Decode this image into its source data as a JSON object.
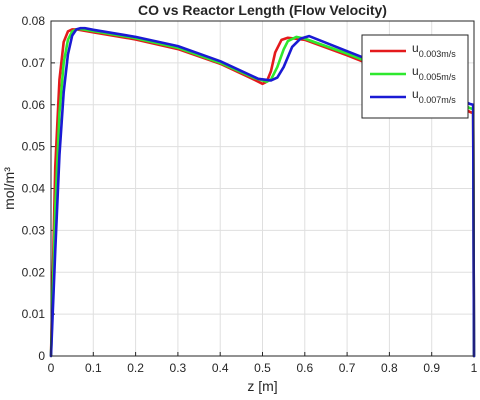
{
  "chart_data": {
    "type": "line",
    "title": "CO vs Reactor Length (Flow Velocity)",
    "xlabel": "z [m]",
    "ylabel": "mol/m³",
    "xlim": [
      0,
      1
    ],
    "ylim": [
      0,
      0.08
    ],
    "xticks": [
      0,
      0.1,
      0.2,
      0.3,
      0.4,
      0.5,
      0.6,
      0.7,
      0.8,
      0.9,
      1
    ],
    "xtick_labels": [
      "0",
      "0.1",
      "0.2",
      "0.3",
      "0.4",
      "0.5",
      "0.6",
      "0.7",
      "0.8",
      "0.9",
      "1"
    ],
    "yticks": [
      0,
      0.01,
      0.02,
      0.03,
      0.04,
      0.05,
      0.06,
      0.07,
      0.08
    ],
    "ytick_labels": [
      "0",
      "0.01",
      "0.02",
      "0.03",
      "0.04",
      "0.05",
      "0.06",
      "0.07",
      "0.08"
    ],
    "grid": true,
    "legend_position": "top-right",
    "series": [
      {
        "legend_main": "u",
        "legend_sub": "0.003m/s",
        "color": "#e41a1c",
        "x": [
          0,
          0.01,
          0.02,
          0.03,
          0.04,
          0.05,
          0.06,
          0.1,
          0.2,
          0.3,
          0.4,
          0.47,
          0.5,
          0.51,
          0.52,
          0.53,
          0.545,
          0.56,
          0.6,
          0.7,
          0.8,
          0.9,
          0.99,
          0.998,
          1
        ],
        "y": [
          0,
          0.045,
          0.066,
          0.075,
          0.0775,
          0.078,
          0.078,
          0.0773,
          0.0756,
          0.0733,
          0.0698,
          0.0665,
          0.065,
          0.0655,
          0.068,
          0.0725,
          0.0755,
          0.076,
          0.0755,
          0.0718,
          0.0678,
          0.0638,
          0.0583,
          0.058,
          0
        ]
      },
      {
        "legend_main": "u",
        "legend_sub": "0.005m/s",
        "color": "#2ee82e",
        "x": [
          0,
          0.01,
          0.02,
          0.03,
          0.04,
          0.05,
          0.06,
          0.07,
          0.1,
          0.2,
          0.3,
          0.4,
          0.48,
          0.51,
          0.52,
          0.535,
          0.55,
          0.56,
          0.58,
          0.6,
          0.7,
          0.8,
          0.9,
          0.99,
          0.998,
          1
        ],
        "y": [
          0,
          0.035,
          0.058,
          0.07,
          0.0755,
          0.0775,
          0.078,
          0.0781,
          0.0776,
          0.0759,
          0.0736,
          0.07,
          0.0664,
          0.0655,
          0.066,
          0.069,
          0.0732,
          0.0752,
          0.0762,
          0.0758,
          0.0722,
          0.0682,
          0.0642,
          0.0592,
          0.059,
          0
        ]
      },
      {
        "legend_main": "u",
        "legend_sub": "0.007m/s",
        "color": "#1a1ad4",
        "x": [
          0,
          0.01,
          0.02,
          0.03,
          0.04,
          0.05,
          0.06,
          0.07,
          0.08,
          0.1,
          0.2,
          0.3,
          0.4,
          0.49,
          0.52,
          0.535,
          0.55,
          0.57,
          0.59,
          0.61,
          0.7,
          0.8,
          0.9,
          0.99,
          0.998,
          1
        ],
        "y": [
          0,
          0.025,
          0.048,
          0.063,
          0.072,
          0.0765,
          0.078,
          0.0783,
          0.0783,
          0.0779,
          0.0762,
          0.074,
          0.0704,
          0.0662,
          0.0658,
          0.0665,
          0.069,
          0.0738,
          0.0758,
          0.0764,
          0.0728,
          0.0688,
          0.0648,
          0.0602,
          0.06,
          0
        ]
      }
    ]
  }
}
